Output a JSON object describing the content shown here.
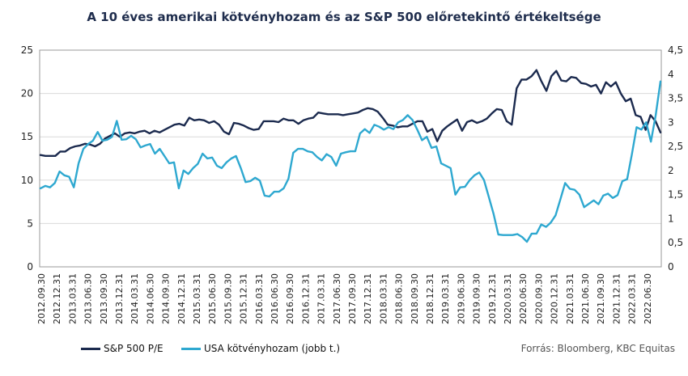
{
  "chart_data": {
    "type": "line",
    "title": "A 10 éves amerikai kötvényhozam és az S&P 500 előretekintő értékeltsége",
    "source": "Forrás: Bloomberg, KBC Equitas",
    "ylim_left": [
      0,
      25
    ],
    "ylim_right": [
      0,
      4.5
    ],
    "yticks_left": [
      "0",
      "5",
      "10",
      "15",
      "20",
      "25"
    ],
    "yticks_right": [
      "0",
      "0,5",
      "1",
      "1,5",
      "2",
      "2,5",
      "3",
      "3,5",
      "4",
      "4,5"
    ],
    "xticks": [
      "2012.09.30",
      "2012.12.31",
      "2013.03.31",
      "2013.06.30",
      "2013.09.30",
      "2013.12.31",
      "2014.03.31",
      "2014.06.30",
      "2014.09.30",
      "2014.12.31",
      "2015.03.31",
      "2015.06.30",
      "2015.09.30",
      "2015.12.31",
      "2016.03.31",
      "2016.06.30",
      "2016.09.30",
      "2016.12.31",
      "2017.03.31",
      "2017.06.30",
      "2017.09.30",
      "2017.12.31",
      "2018.03.31",
      "2018.06.30",
      "2018.09.30",
      "2018.12.31",
      "2019.03.31",
      "2019.06.30",
      "2019.09.30",
      "2019.12.31",
      "2020.03.31",
      "2020.06.30",
      "2020.09.30",
      "2020.12.31",
      "2021.03.31",
      "2021.06.30",
      "2021.09.30",
      "2021.12.31",
      "2022.03.31",
      "2022.06.30"
    ],
    "grid": true,
    "legend_position": "bottom-left",
    "series": [
      {
        "name": "S&P 500 P/E",
        "axis": "left",
        "color": "#1b2a4e",
        "values": [
          12.9,
          12.8,
          12.8,
          12.8,
          13.3,
          13.3,
          13.7,
          13.9,
          14.0,
          14.2,
          14.1,
          13.9,
          14.2,
          14.8,
          15.1,
          15.4,
          15.0,
          15.4,
          15.5,
          15.4,
          15.6,
          15.7,
          15.4,
          15.7,
          15.5,
          15.8,
          16.1,
          16.4,
          16.5,
          16.3,
          17.2,
          16.9,
          17.0,
          16.9,
          16.6,
          16.8,
          16.4,
          15.6,
          15.3,
          16.6,
          16.5,
          16.3,
          16.0,
          15.8,
          15.9,
          16.8,
          16.8,
          16.8,
          16.7,
          17.1,
          16.9,
          16.9,
          16.5,
          16.9,
          17.1,
          17.2,
          17.8,
          17.7,
          17.6,
          17.6,
          17.6,
          17.5,
          17.6,
          17.7,
          17.8,
          18.1,
          18.3,
          18.2,
          17.9,
          17.2,
          16.4,
          16.3,
          16.1,
          16.2,
          16.2,
          16.5,
          16.8,
          16.8,
          15.6,
          15.9,
          14.5,
          15.7,
          16.2,
          16.6,
          17.0,
          15.7,
          16.7,
          16.9,
          16.6,
          16.8,
          17.1,
          17.7,
          18.2,
          18.1,
          16.8,
          16.4,
          20.6,
          21.6,
          21.6,
          22.0,
          22.7,
          21.4,
          20.3,
          22.0,
          22.6,
          21.5,
          21.4,
          21.9,
          21.8,
          21.2,
          21.1,
          20.8,
          21.0,
          20.0,
          21.3,
          20.8,
          21.3,
          20.0,
          19.1,
          19.4,
          17.5,
          17.3,
          15.8,
          17.5,
          16.8,
          15.5
        ]
      },
      {
        "name": "USA kötvényhozam (jobb t.)",
        "axis": "right",
        "color": "#2ea8d0",
        "values": [
          1.63,
          1.68,
          1.65,
          1.74,
          1.98,
          1.9,
          1.87,
          1.65,
          2.15,
          2.45,
          2.55,
          2.62,
          2.8,
          2.62,
          2.64,
          2.7,
          3.03,
          2.64,
          2.65,
          2.72,
          2.65,
          2.48,
          2.52,
          2.55,
          2.35,
          2.45,
          2.3,
          2.15,
          2.17,
          1.63,
          2.0,
          1.93,
          2.05,
          2.14,
          2.35,
          2.25,
          2.27,
          2.1,
          2.05,
          2.17,
          2.25,
          2.3,
          2.05,
          1.76,
          1.78,
          1.85,
          1.79,
          1.48,
          1.46,
          1.56,
          1.56,
          1.63,
          1.83,
          2.37,
          2.45,
          2.45,
          2.4,
          2.38,
          2.28,
          2.21,
          2.34,
          2.28,
          2.1,
          2.35,
          2.38,
          2.4,
          2.4,
          2.77,
          2.86,
          2.78,
          2.95,
          2.91,
          2.85,
          2.9,
          2.86,
          3.0,
          3.05,
          3.15,
          3.05,
          2.85,
          2.63,
          2.7,
          2.47,
          2.5,
          2.15,
          2.1,
          2.05,
          1.5,
          1.65,
          1.66,
          1.8,
          1.9,
          1.96,
          1.8,
          1.45,
          1.1,
          0.67,
          0.66,
          0.66,
          0.66,
          0.68,
          0.62,
          0.52,
          0.69,
          0.69,
          0.88,
          0.83,
          0.92,
          1.07,
          1.4,
          1.74,
          1.62,
          1.6,
          1.5,
          1.24,
          1.31,
          1.38,
          1.3,
          1.48,
          1.52,
          1.43,
          1.49,
          1.78,
          1.82,
          2.33,
          2.9,
          2.85,
          3.0,
          2.6,
          3.15,
          3.85
        ]
      }
    ]
  }
}
